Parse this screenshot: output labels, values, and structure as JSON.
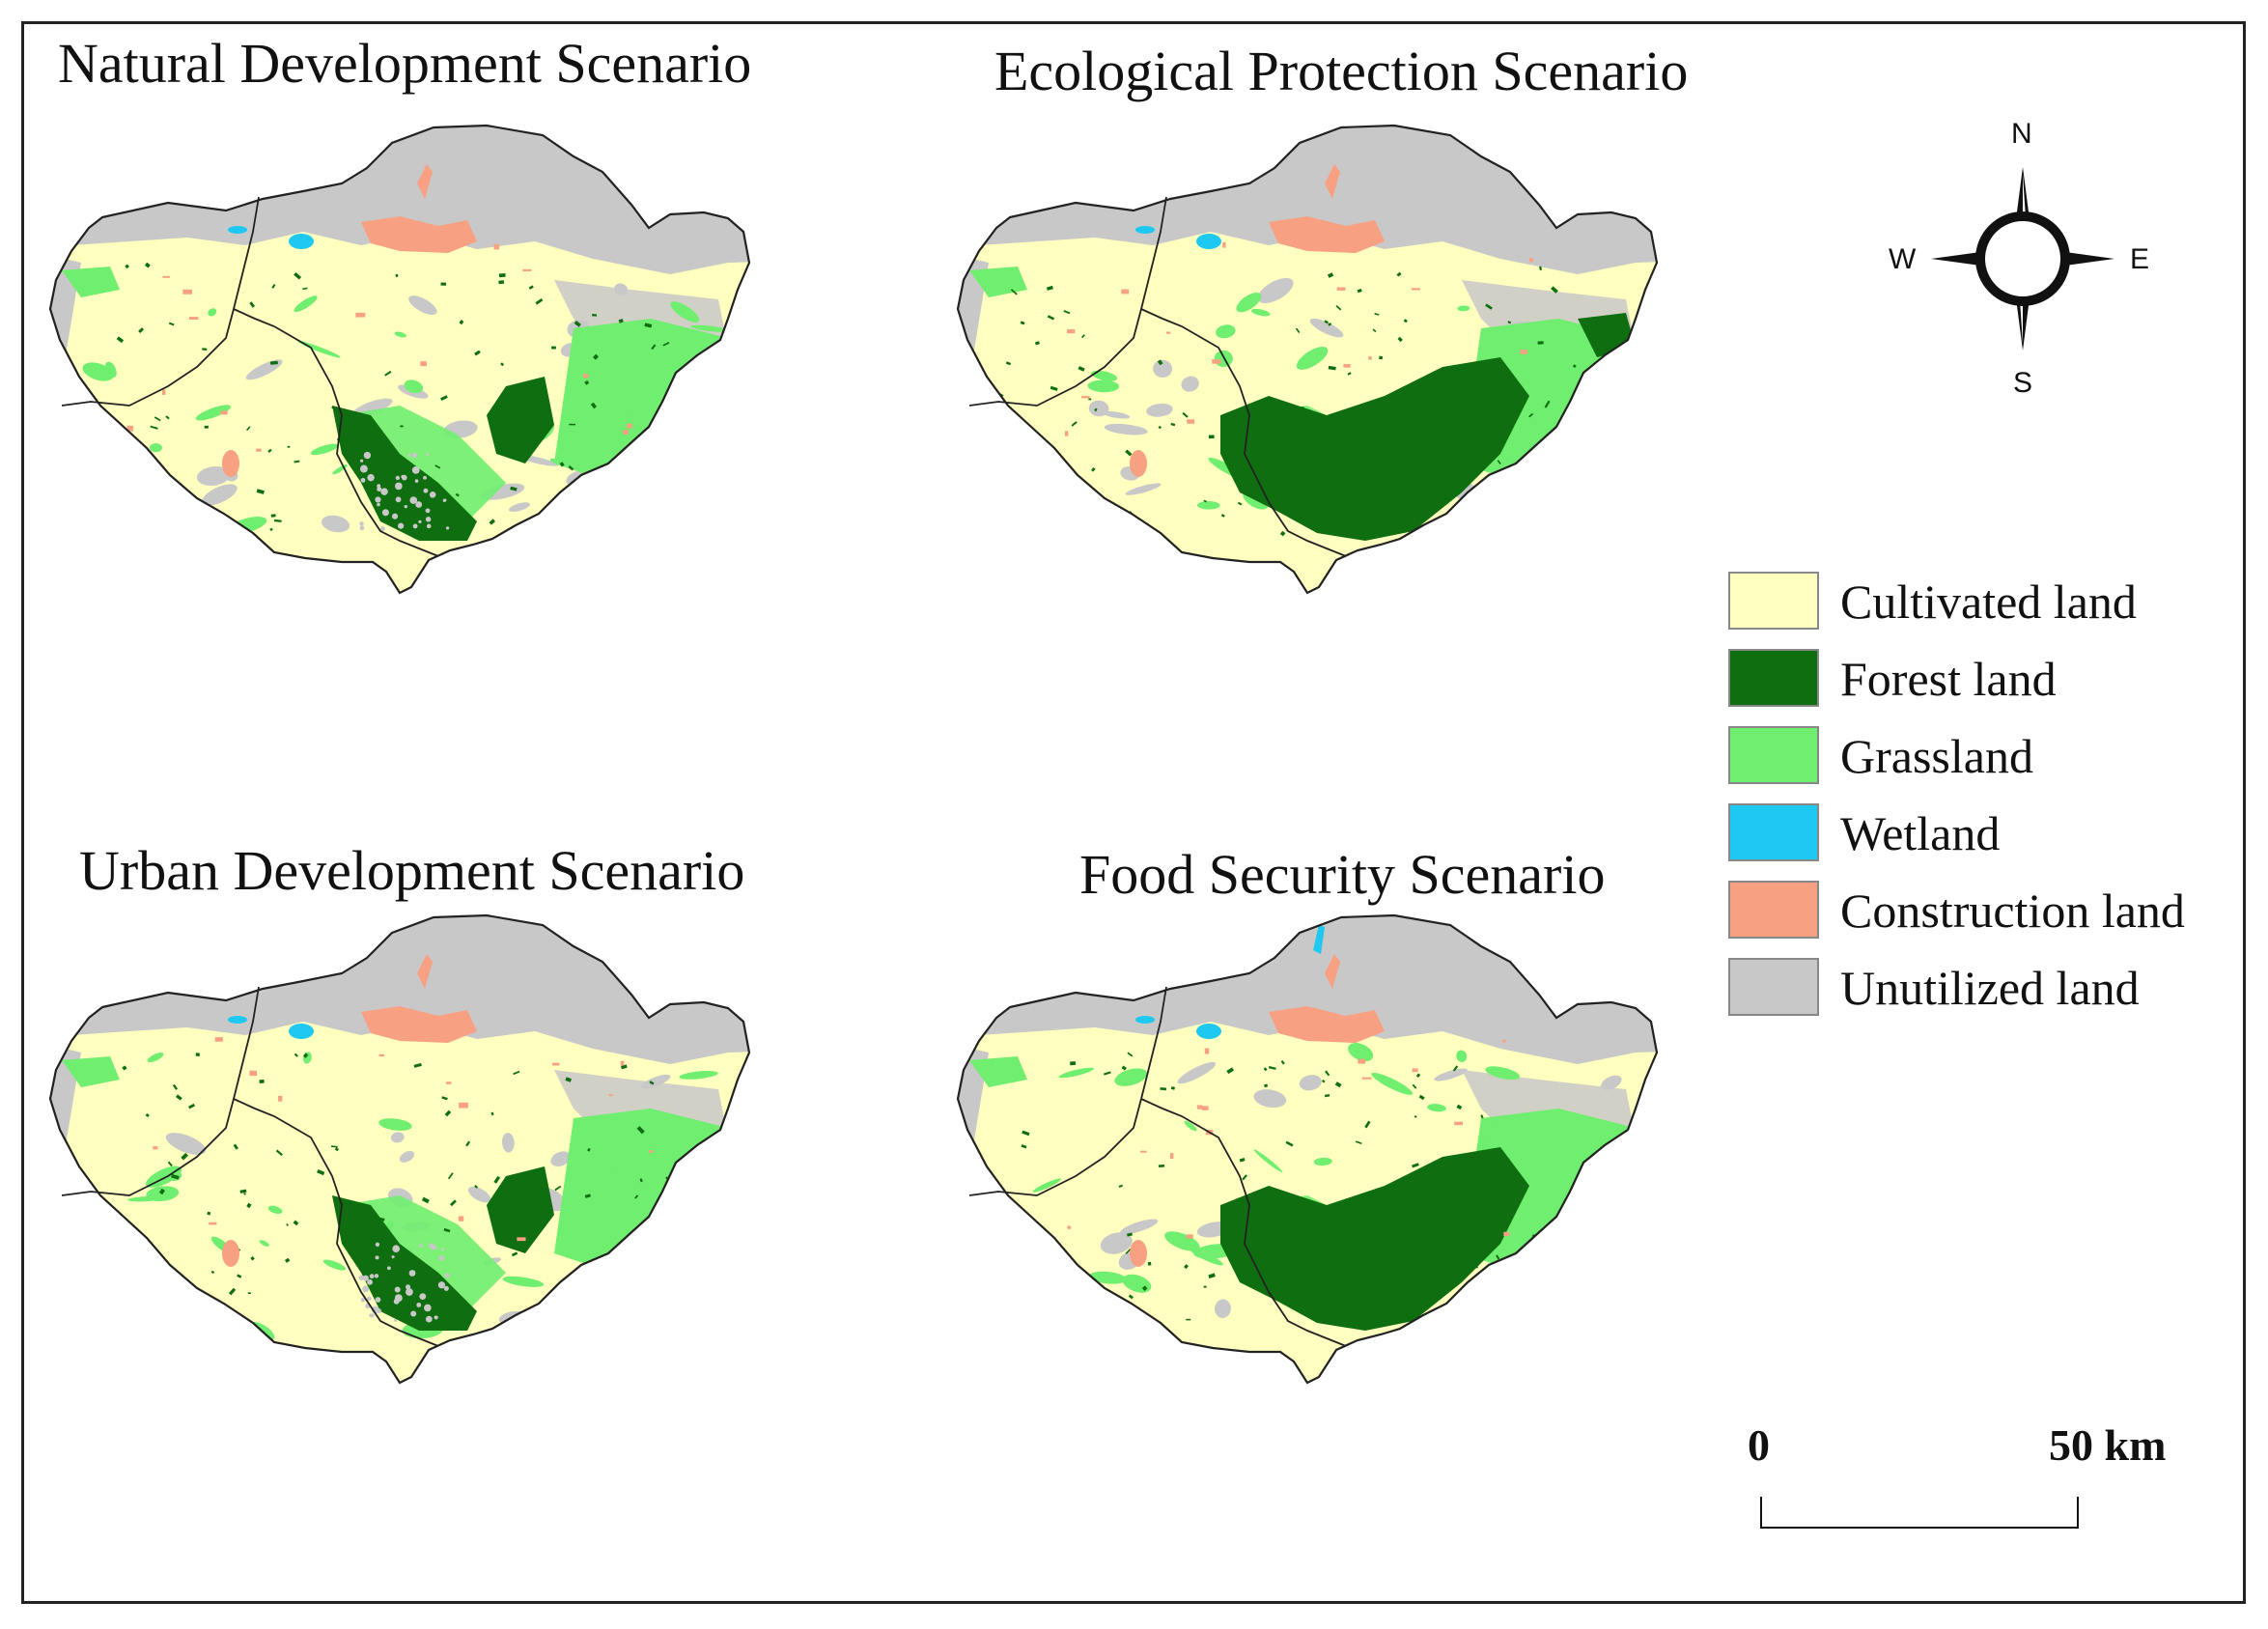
{
  "panels": [
    {
      "title": "Natural Development Scenario",
      "variant": "natural"
    },
    {
      "title": "Ecological Protection Scenario",
      "variant": "ecological"
    },
    {
      "title": "Urban Development Scenario",
      "variant": "urban"
    },
    {
      "title": "Food Security Scenario",
      "variant": "food"
    }
  ],
  "compass": {
    "n": "N",
    "s": "S",
    "e": "E",
    "w": "W"
  },
  "legend": [
    {
      "label": "Cultivated land",
      "color": "#ffffc0"
    },
    {
      "label": "Forest land",
      "color": "#0f6e0f"
    },
    {
      "label": "Grassland",
      "color": "#6fee6f"
    },
    {
      "label": "Wetland",
      "color": "#1ec8f0"
    },
    {
      "label": "Construction land",
      "color": "#f8a082"
    },
    {
      "label": "Unutilized land",
      "color": "#c8c8c8"
    }
  ],
  "scalebar": {
    "start": "0",
    "end": "50 km"
  }
}
